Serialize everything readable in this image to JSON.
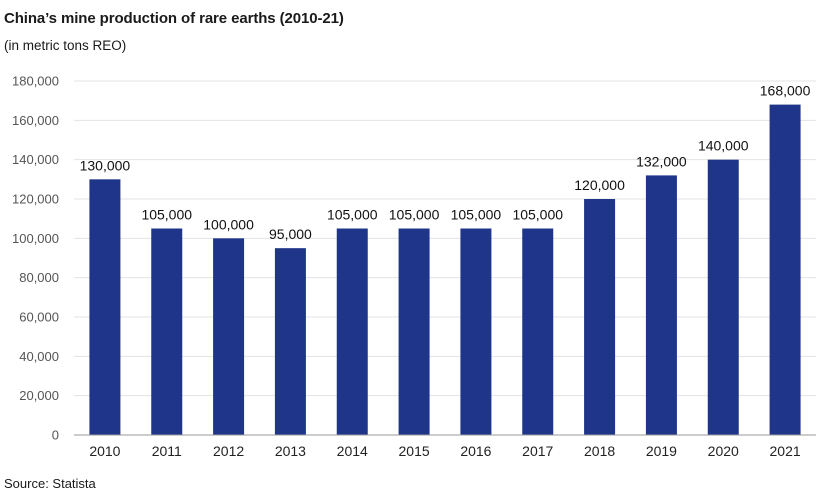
{
  "header": {
    "title": "China’s mine production of rare earths (2010-21)",
    "subtitle": "(in metric tons REO)"
  },
  "footer": {
    "source": "Source: Statista"
  },
  "chart_data": {
    "type": "bar",
    "title": "China’s mine production of rare earths (2010-21)",
    "subtitle": "(in metric tons REO)",
    "xlabel": "",
    "ylabel": "",
    "categories": [
      "2010",
      "2011",
      "2012",
      "2013",
      "2014",
      "2015",
      "2016",
      "2017",
      "2018",
      "2019",
      "2020",
      "2021"
    ],
    "values": [
      130000,
      105000,
      100000,
      95000,
      105000,
      105000,
      105000,
      105000,
      120000,
      132000,
      140000,
      168000
    ],
    "data_labels": [
      "130,000",
      "105,000",
      "100,000",
      "95,000",
      "105,000",
      "105,000",
      "105,000",
      "105,000",
      "120,000",
      "132,000",
      "140,000",
      "168,000"
    ],
    "ylim": [
      0,
      180000
    ],
    "yticks": [
      0,
      20000,
      40000,
      60000,
      80000,
      100000,
      120000,
      140000,
      160000,
      180000
    ],
    "ytick_labels": [
      "0",
      "20,000",
      "40,000",
      "60,000",
      "80,000",
      "100,000",
      "120,000",
      "140,000",
      "160,000",
      "180,000"
    ],
    "grid": true,
    "legend": "none",
    "colors": {
      "bar": "#1f3589",
      "grid": "#e3e3e3",
      "axis": "#9a9a9a"
    }
  }
}
